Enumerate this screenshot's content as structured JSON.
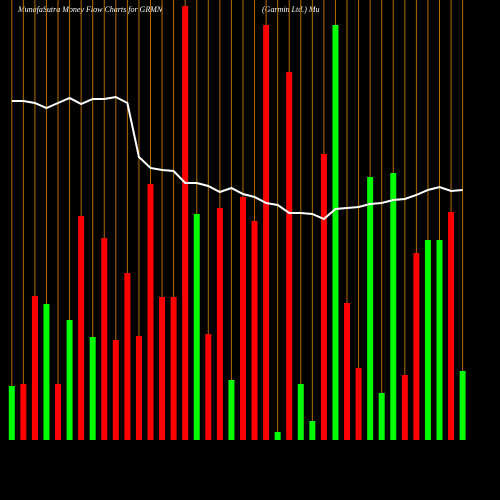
{
  "chart_data": {
    "type": "bar",
    "title": "MunafaSutra  Money Flow  Charts for GRMN",
    "subtitle": "(Garmin Ltd.) Mu",
    "ylim": [
      0,
      440
    ],
    "values": [
      54,
      56,
      144,
      136,
      56,
      120,
      224,
      103,
      202,
      100,
      167,
      104,
      256,
      143,
      143,
      434,
      226,
      106,
      232,
      60,
      243,
      219,
      415,
      8,
      368,
      56,
      19,
      286,
      415,
      137,
      72,
      263,
      47,
      267,
      65,
      187,
      200,
      200,
      228,
      69
    ],
    "colors": [
      "#00ff00",
      "#ff0000",
      "#ff0000",
      "#00ff00",
      "#ff0000",
      "#00ff00",
      "#ff0000",
      "#00ff00",
      "#ff0000",
      "#ff0000",
      "#ff0000",
      "#ff0000",
      "#ff0000",
      "#ff0000",
      "#ff0000",
      "#ff0000",
      "#00ff00",
      "#ff0000",
      "#ff0000",
      "#00ff00",
      "#ff0000",
      "#ff0000",
      "#ff0000",
      "#00ff00",
      "#ff0000",
      "#00ff00",
      "#00ff00",
      "#ff0000",
      "#00ff00",
      "#ff0000",
      "#ff0000",
      "#00ff00",
      "#00ff00",
      "#00ff00",
      "#ff0000",
      "#ff0000",
      "#00ff00",
      "#00ff00",
      "#ff0000",
      "#00ff00"
    ],
    "line": {
      "color": "#ffffff",
      "values": [
        339,
        339,
        337,
        332,
        337,
        342,
        336,
        341,
        341,
        343,
        337,
        283,
        272,
        270,
        269,
        257,
        257,
        254,
        248,
        252,
        246,
        243,
        237,
        235,
        227,
        227,
        226,
        221,
        231,
        232,
        233,
        236,
        237,
        240,
        241,
        245,
        250,
        253,
        249,
        250
      ]
    }
  }
}
